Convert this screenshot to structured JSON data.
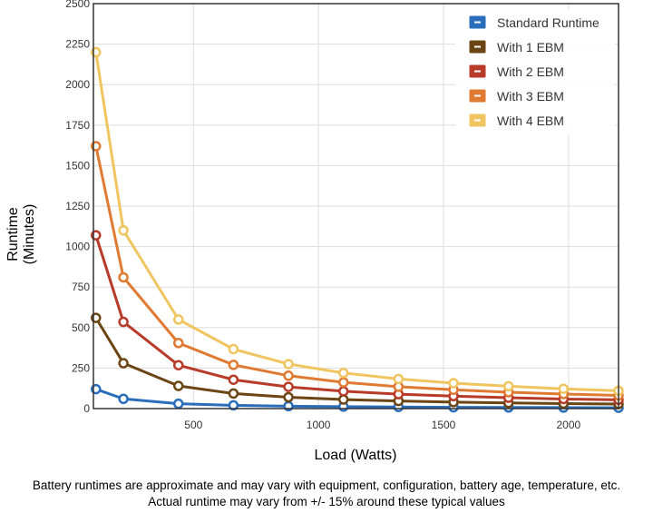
{
  "chart_data": {
    "type": "line",
    "xlabel": "Load (Watts)",
    "ylabel": [
      "Runtime",
      "(Minutes)"
    ],
    "xlim": [
      100,
      2200
    ],
    "ylim": [
      0,
      2500
    ],
    "xticks": [
      500,
      1000,
      1500,
      2000
    ],
    "yticks": [
      0,
      250,
      500,
      750,
      1000,
      1250,
      1500,
      1750,
      2000,
      2250,
      2500
    ],
    "grid": true,
    "legend_position": "top-right",
    "x": [
      110,
      220,
      440,
      660,
      880,
      1100,
      1320,
      1540,
      1760,
      1980,
      2200
    ],
    "series": [
      {
        "name": "Standard Runtime",
        "color": "#2a6ebb",
        "values": [
          120,
          60,
          30,
          20,
          15,
          12,
          10,
          8,
          7,
          6,
          5
        ]
      },
      {
        "name": "With 1 EBM",
        "color": "#6b4513",
        "values": [
          560,
          280,
          140,
          93,
          70,
          56,
          47,
          40,
          35,
          31,
          28
        ]
      },
      {
        "name": "With 2 EBM",
        "color": "#b83a28",
        "values": [
          1070,
          535,
          268,
          178,
          134,
          107,
          89,
          77,
          67,
          59,
          54
        ]
      },
      {
        "name": "With 3 EBM",
        "color": "#e07a32",
        "values": [
          1620,
          810,
          405,
          270,
          203,
          162,
          135,
          116,
          101,
          90,
          81
        ]
      },
      {
        "name": "With 4 EBM",
        "color": "#f0c560",
        "values": [
          2200,
          1100,
          550,
          367,
          275,
          220,
          183,
          157,
          138,
          122,
          110
        ]
      }
    ]
  },
  "footnote": {
    "line1": "Battery runtimes are approximate and may vary with equipment, configuration, battery age, temperature, etc.",
    "line2": "Actual runtime may vary from +/- 15% around these typical values"
  }
}
